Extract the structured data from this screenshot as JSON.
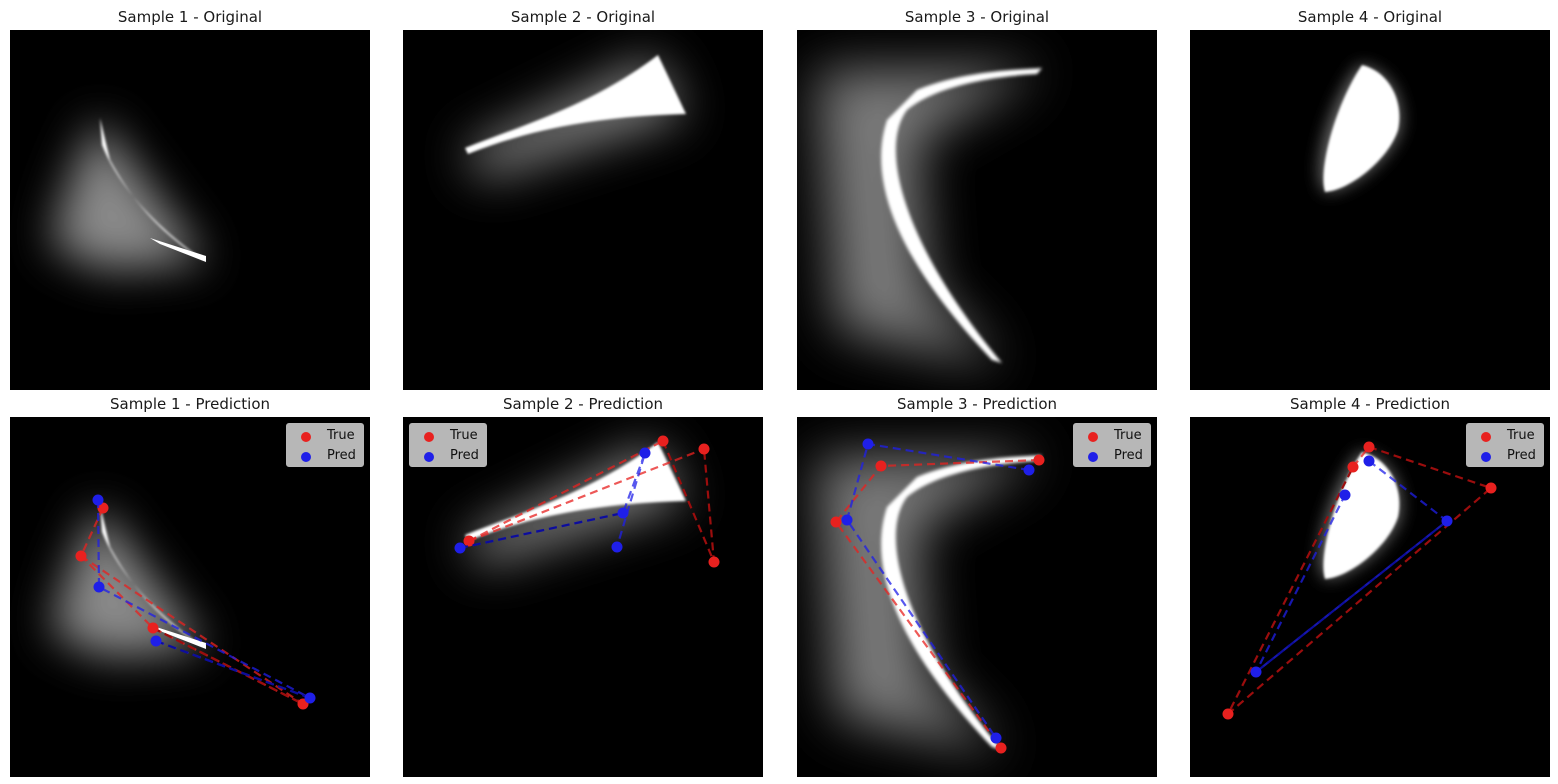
{
  "colors": {
    "true": "#e8211f",
    "pred": "#1f1fe8",
    "true_dark": "#9b0d0d",
    "pred_dark": "#0d0d9b"
  },
  "legend": {
    "true_label": "True",
    "pred_label": "Pred"
  },
  "samples": [
    {
      "title_orig": "Sample 1 - Original",
      "title_pred": "Sample 1 - Prediction"
    },
    {
      "title_orig": "Sample 2 - Original",
      "title_pred": "Sample 2 - Prediction"
    },
    {
      "title_orig": "Sample 3 - Original",
      "title_pred": "Sample 3 - Prediction"
    },
    {
      "title_orig": "Sample 4 - Original",
      "title_pred": "Sample 4 - Prediction"
    }
  ]
}
